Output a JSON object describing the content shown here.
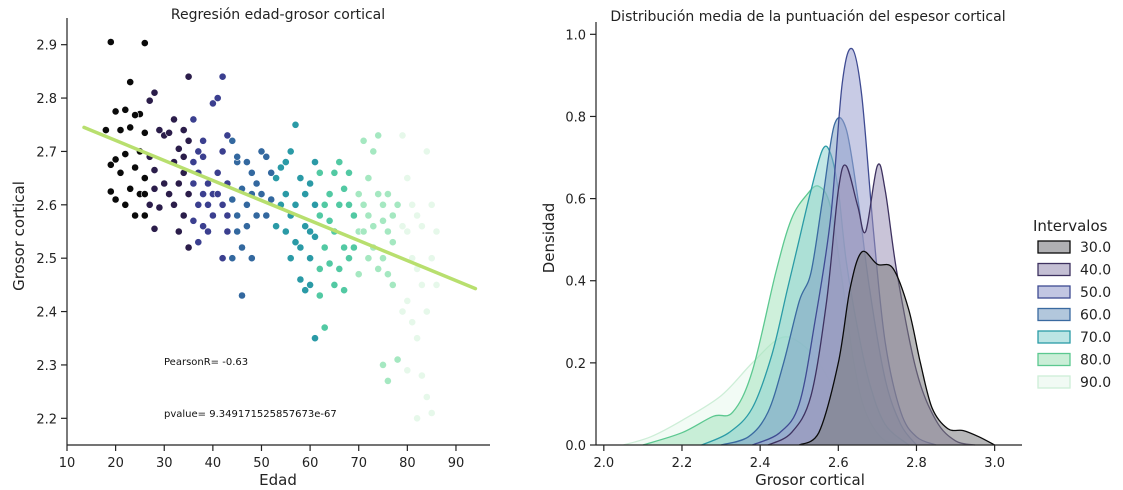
{
  "chart_data": [
    {
      "type": "scatter",
      "title": "Regresión edad-grosor cortical",
      "xlabel": "Edad",
      "ylabel": "Grosor cortical",
      "xlim": [
        10,
        97
      ],
      "ylim": [
        2.15,
        2.95
      ],
      "xticks": [
        "10",
        "20",
        "30",
        "40",
        "50",
        "60",
        "70",
        "80",
        "90"
      ],
      "yticks": [
        "2.2",
        "2.3",
        "2.4",
        "2.5",
        "2.6",
        "2.7",
        "2.8",
        "2.9"
      ],
      "regression": {
        "x": [
          13.5,
          94
        ],
        "y": [
          2.745,
          2.443
        ],
        "color": "#b8df6e"
      },
      "annotations": [
        "PearsonR= -0.63",
        "pvalue= 9.349171525857673e-67"
      ],
      "point_color_scale": [
        "#0a0a0a",
        "#2b1d4a",
        "#3b3f8f",
        "#33689f",
        "#2a9aa6",
        "#52c9a3",
        "#a5e8c1",
        "#e6f8ea"
      ],
      "points": [
        [
          19,
          2.905
        ],
        [
          26,
          2.903
        ],
        [
          23,
          2.83
        ],
        [
          28,
          2.81
        ],
        [
          27,
          2.795
        ],
        [
          25,
          2.77
        ],
        [
          22,
          2.778
        ],
        [
          20,
          2.775
        ],
        [
          24,
          2.768
        ],
        [
          21,
          2.74
        ],
        [
          18,
          2.74
        ],
        [
          23,
          2.745
        ],
        [
          26,
          2.735
        ],
        [
          29,
          2.74
        ],
        [
          30,
          2.73
        ],
        [
          31,
          2.735
        ],
        [
          25,
          2.7
        ],
        [
          22,
          2.695
        ],
        [
          27,
          2.69
        ],
        [
          20,
          2.685
        ],
        [
          24,
          2.67
        ],
        [
          19,
          2.675
        ],
        [
          21,
          2.66
        ],
        [
          26,
          2.65
        ],
        [
          28,
          2.665
        ],
        [
          23,
          2.63
        ],
        [
          25,
          2.62
        ],
        [
          22,
          2.6
        ],
        [
          20,
          2.61
        ],
        [
          27,
          2.6
        ],
        [
          29,
          2.595
        ],
        [
          24,
          2.58
        ],
        [
          26,
          2.58
        ],
        [
          28,
          2.555
        ],
        [
          19,
          2.625
        ],
        [
          30,
          2.64
        ],
        [
          31,
          2.62
        ],
        [
          32,
          2.6
        ],
        [
          28,
          2.63
        ],
        [
          26,
          2.62
        ],
        [
          33,
          2.705
        ],
        [
          35,
          2.72
        ],
        [
          37,
          2.7
        ],
        [
          34,
          2.69
        ],
        [
          36,
          2.68
        ],
        [
          38,
          2.69
        ],
        [
          34,
          2.74
        ],
        [
          36,
          2.76
        ],
        [
          38,
          2.72
        ],
        [
          35,
          2.84
        ],
        [
          32,
          2.76
        ],
        [
          33,
          2.64
        ],
        [
          35,
          2.62
        ],
        [
          37,
          2.6
        ],
        [
          34,
          2.58
        ],
        [
          36,
          2.57
        ],
        [
          38,
          2.56
        ],
        [
          33,
          2.55
        ],
        [
          35,
          2.52
        ],
        [
          37,
          2.53
        ],
        [
          39,
          2.64
        ],
        [
          40,
          2.62
        ],
        [
          39,
          2.6
        ],
        [
          37,
          2.66
        ],
        [
          34,
          2.66
        ],
        [
          32,
          2.68
        ],
        [
          36,
          2.64
        ],
        [
          38,
          2.62
        ],
        [
          40,
          2.58
        ],
        [
          39,
          2.55
        ],
        [
          40,
          2.79
        ],
        [
          42,
          2.84
        ],
        [
          41,
          2.8
        ],
        [
          43,
          2.73
        ],
        [
          44,
          2.72
        ],
        [
          42,
          2.7
        ],
        [
          45,
          2.68
        ],
        [
          41,
          2.66
        ],
        [
          43,
          2.64
        ],
        [
          46,
          2.63
        ],
        [
          44,
          2.61
        ],
        [
          42,
          2.6
        ],
        [
          45,
          2.58
        ],
        [
          47,
          2.56
        ],
        [
          43,
          2.55
        ],
        [
          46,
          2.52
        ],
        [
          44,
          2.5
        ],
        [
          42,
          2.5
        ],
        [
          48,
          2.5
        ],
        [
          46,
          2.43
        ],
        [
          45,
          2.69
        ],
        [
          47,
          2.68
        ],
        [
          48,
          2.66
        ],
        [
          49,
          2.64
        ],
        [
          41,
          2.62
        ],
        [
          43,
          2.58
        ],
        [
          45,
          2.55
        ],
        [
          47,
          2.6
        ],
        [
          49,
          2.58
        ],
        [
          48,
          2.62
        ],
        [
          50,
          2.7
        ],
        [
          51,
          2.69
        ],
        [
          52,
          2.66
        ],
        [
          53,
          2.65
        ],
        [
          54,
          2.67
        ],
        [
          50,
          2.62
        ],
        [
          52,
          2.61
        ],
        [
          54,
          2.6
        ],
        [
          51,
          2.58
        ],
        [
          53,
          2.56
        ],
        [
          55,
          2.68
        ],
        [
          56,
          2.7
        ],
        [
          57,
          2.75
        ],
        [
          55,
          2.62
        ],
        [
          57,
          2.6
        ],
        [
          56,
          2.58
        ],
        [
          55,
          2.55
        ],
        [
          57,
          2.53
        ],
        [
          56,
          2.5
        ],
        [
          58,
          2.46
        ],
        [
          59,
          2.62
        ],
        [
          60,
          2.64
        ],
        [
          61,
          2.6
        ],
        [
          62,
          2.58
        ],
        [
          59,
          2.56
        ],
        [
          61,
          2.54
        ],
        [
          60,
          2.5
        ],
        [
          62,
          2.48
        ],
        [
          59,
          2.44
        ],
        [
          61,
          2.35
        ],
        [
          63,
          2.37
        ],
        [
          60,
          2.45
        ],
        [
          62,
          2.43
        ],
        [
          58,
          2.52
        ],
        [
          60,
          2.55
        ],
        [
          58,
          2.65
        ],
        [
          62,
          2.66
        ],
        [
          63,
          2.6
        ],
        [
          64,
          2.62
        ],
        [
          61,
          2.68
        ],
        [
          64,
          2.57
        ],
        [
          65,
          2.55
        ],
        [
          66,
          2.6
        ],
        [
          67,
          2.63
        ],
        [
          65,
          2.66
        ],
        [
          66,
          2.68
        ],
        [
          67,
          2.52
        ],
        [
          68,
          2.5
        ],
        [
          66,
          2.48
        ],
        [
          65,
          2.45
        ],
        [
          67,
          2.44
        ],
        [
          68,
          2.6
        ],
        [
          69,
          2.58
        ],
        [
          70,
          2.62
        ],
        [
          68,
          2.66
        ],
        [
          70,
          2.55
        ],
        [
          69,
          2.52
        ],
        [
          70,
          2.47
        ],
        [
          64,
          2.49
        ],
        [
          63,
          2.52
        ],
        [
          71,
          2.6
        ],
        [
          72,
          2.58
        ],
        [
          73,
          2.56
        ],
        [
          74,
          2.62
        ],
        [
          71,
          2.55
        ],
        [
          72,
          2.5
        ],
        [
          73,
          2.52
        ],
        [
          74,
          2.48
        ],
        [
          75,
          2.57
        ],
        [
          76,
          2.55
        ],
        [
          71,
          2.72
        ],
        [
          73,
          2.7
        ],
        [
          74,
          2.73
        ],
        [
          72,
          2.65
        ],
        [
          75,
          2.6
        ],
        [
          76,
          2.62
        ],
        [
          77,
          2.58
        ],
        [
          75,
          2.5
        ],
        [
          76,
          2.47
        ],
        [
          77,
          2.45
        ],
        [
          75,
          2.3
        ],
        [
          76,
          2.27
        ],
        [
          78,
          2.31
        ],
        [
          79,
          2.4
        ],
        [
          78,
          2.6
        ],
        [
          79,
          2.56
        ],
        [
          77,
          2.53
        ],
        [
          80,
          2.55
        ],
        [
          79,
          2.73
        ],
        [
          80,
          2.65
        ],
        [
          81,
          2.6
        ],
        [
          82,
          2.58
        ],
        [
          83,
          2.56
        ],
        [
          81,
          2.5
        ],
        [
          82,
          2.48
        ],
        [
          83,
          2.45
        ],
        [
          84,
          2.4
        ],
        [
          82,
          2.35
        ],
        [
          83,
          2.28
        ],
        [
          84,
          2.24
        ],
        [
          85,
          2.6
        ],
        [
          86,
          2.55
        ],
        [
          84,
          2.7
        ],
        [
          85,
          2.5
        ],
        [
          86,
          2.45
        ],
        [
          80,
          2.42
        ],
        [
          81,
          2.38
        ],
        [
          85,
          2.21
        ],
        [
          82,
          2.2
        ],
        [
          80,
          2.29
        ]
      ]
    },
    {
      "type": "area",
      "title": "Distribución media de la puntuación del espesor cortical",
      "xlabel": "Grosor cortical",
      "ylabel": "Densidad",
      "xlim": [
        1.98,
        3.07
      ],
      "ylim": [
        0,
        1.03
      ],
      "xticks": [
        "2.0",
        "2.2",
        "2.4",
        "2.6",
        "2.8",
        "3.0"
      ],
      "yticks": [
        "0.0",
        "0.2",
        "0.4",
        "0.6",
        "0.8",
        "1.0"
      ],
      "legend": {
        "title": "Intervalos",
        "placement": "right",
        "entries": [
          "30.0",
          "40.0",
          "50.0",
          "60.0",
          "70.0",
          "80.0",
          "90.0"
        ]
      },
      "series": [
        {
          "name": "90.0",
          "fill": "#e8f7ec",
          "stroke": "#cdeed7",
          "points": [
            [
              2.05,
              0.0
            ],
            [
              2.12,
              0.02
            ],
            [
              2.2,
              0.06
            ],
            [
              2.3,
              0.12
            ],
            [
              2.38,
              0.2
            ],
            [
              2.45,
              0.26
            ],
            [
              2.5,
              0.25
            ],
            [
              2.55,
              0.2
            ],
            [
              2.6,
              0.12
            ],
            [
              2.65,
              0.05
            ],
            [
              2.7,
              0.01
            ],
            [
              2.75,
              0.0
            ]
          ]
        },
        {
          "name": "80.0",
          "fill": "#a6e3bd",
          "stroke": "#5cc890",
          "points": [
            [
              2.1,
              0.0
            ],
            [
              2.2,
              0.03
            ],
            [
              2.28,
              0.07
            ],
            [
              2.33,
              0.08
            ],
            [
              2.38,
              0.18
            ],
            [
              2.44,
              0.42
            ],
            [
              2.48,
              0.55
            ],
            [
              2.52,
              0.61
            ],
            [
              2.55,
              0.63
            ],
            [
              2.58,
              0.58
            ],
            [
              2.61,
              0.4
            ],
            [
              2.64,
              0.2
            ],
            [
              2.67,
              0.08
            ],
            [
              2.72,
              0.01
            ],
            [
              2.78,
              0.0
            ]
          ]
        },
        {
          "name": "70.0",
          "fill": "#8fd4d2",
          "stroke": "#2a9ba6",
          "points": [
            [
              2.25,
              0.0
            ],
            [
              2.32,
              0.03
            ],
            [
              2.38,
              0.09
            ],
            [
              2.43,
              0.22
            ],
            [
              2.47,
              0.38
            ],
            [
              2.5,
              0.5
            ],
            [
              2.53,
              0.62
            ],
            [
              2.56,
              0.72
            ],
            [
              2.58,
              0.71
            ],
            [
              2.6,
              0.62
            ],
            [
              2.62,
              0.45
            ],
            [
              2.65,
              0.28
            ],
            [
              2.68,
              0.15
            ],
            [
              2.72,
              0.05
            ],
            [
              2.78,
              0.0
            ]
          ]
        },
        {
          "name": "60.0",
          "fill": "#7fa2c4",
          "stroke": "#3a6aa0",
          "points": [
            [
              2.3,
              0.0
            ],
            [
              2.37,
              0.02
            ],
            [
              2.42,
              0.08
            ],
            [
              2.46,
              0.2
            ],
            [
              2.5,
              0.35
            ],
            [
              2.53,
              0.42
            ],
            [
              2.56,
              0.6
            ],
            [
              2.59,
              0.78
            ],
            [
              2.62,
              0.77
            ],
            [
              2.65,
              0.6
            ],
            [
              2.68,
              0.38
            ],
            [
              2.72,
              0.16
            ],
            [
              2.76,
              0.05
            ],
            [
              2.8,
              0.0
            ]
          ]
        },
        {
          "name": "50.0",
          "fill": "#9aa0cf",
          "stroke": "#3f4b92",
          "points": [
            [
              2.38,
              0.0
            ],
            [
              2.45,
              0.03
            ],
            [
              2.5,
              0.1
            ],
            [
              2.54,
              0.3
            ],
            [
              2.58,
              0.55
            ],
            [
              2.61,
              0.88
            ],
            [
              2.635,
              0.965
            ],
            [
              2.66,
              0.85
            ],
            [
              2.69,
              0.52
            ],
            [
              2.72,
              0.25
            ],
            [
              2.76,
              0.08
            ],
            [
              2.8,
              0.02
            ],
            [
              2.85,
              0.0
            ]
          ]
        },
        {
          "name": "40.0",
          "fill": "#9d94b8",
          "stroke": "#3e3260",
          "points": [
            [
              2.42,
              0.0
            ],
            [
              2.48,
              0.03
            ],
            [
              2.53,
              0.12
            ],
            [
              2.57,
              0.35
            ],
            [
              2.6,
              0.62
            ],
            [
              2.62,
              0.68
            ],
            [
              2.65,
              0.58
            ],
            [
              2.67,
              0.52
            ],
            [
              2.7,
              0.68
            ],
            [
              2.72,
              0.62
            ],
            [
              2.75,
              0.42
            ],
            [
              2.8,
              0.18
            ],
            [
              2.85,
              0.06
            ],
            [
              2.9,
              0.01
            ],
            [
              2.95,
              0.0
            ]
          ]
        },
        {
          "name": "30.0",
          "fill": "#7b7b80",
          "stroke": "#0a0a0a",
          "points": [
            [
              2.5,
              0.0
            ],
            [
              2.55,
              0.03
            ],
            [
              2.6,
              0.2
            ],
            [
              2.63,
              0.38
            ],
            [
              2.66,
              0.47
            ],
            [
              2.7,
              0.44
            ],
            [
              2.74,
              0.43
            ],
            [
              2.78,
              0.33
            ],
            [
              2.81,
              0.2
            ],
            [
              2.84,
              0.09
            ],
            [
              2.88,
              0.04
            ],
            [
              2.92,
              0.035
            ],
            [
              2.96,
              0.02
            ],
            [
              3.0,
              0.0
            ]
          ]
        }
      ]
    }
  ]
}
